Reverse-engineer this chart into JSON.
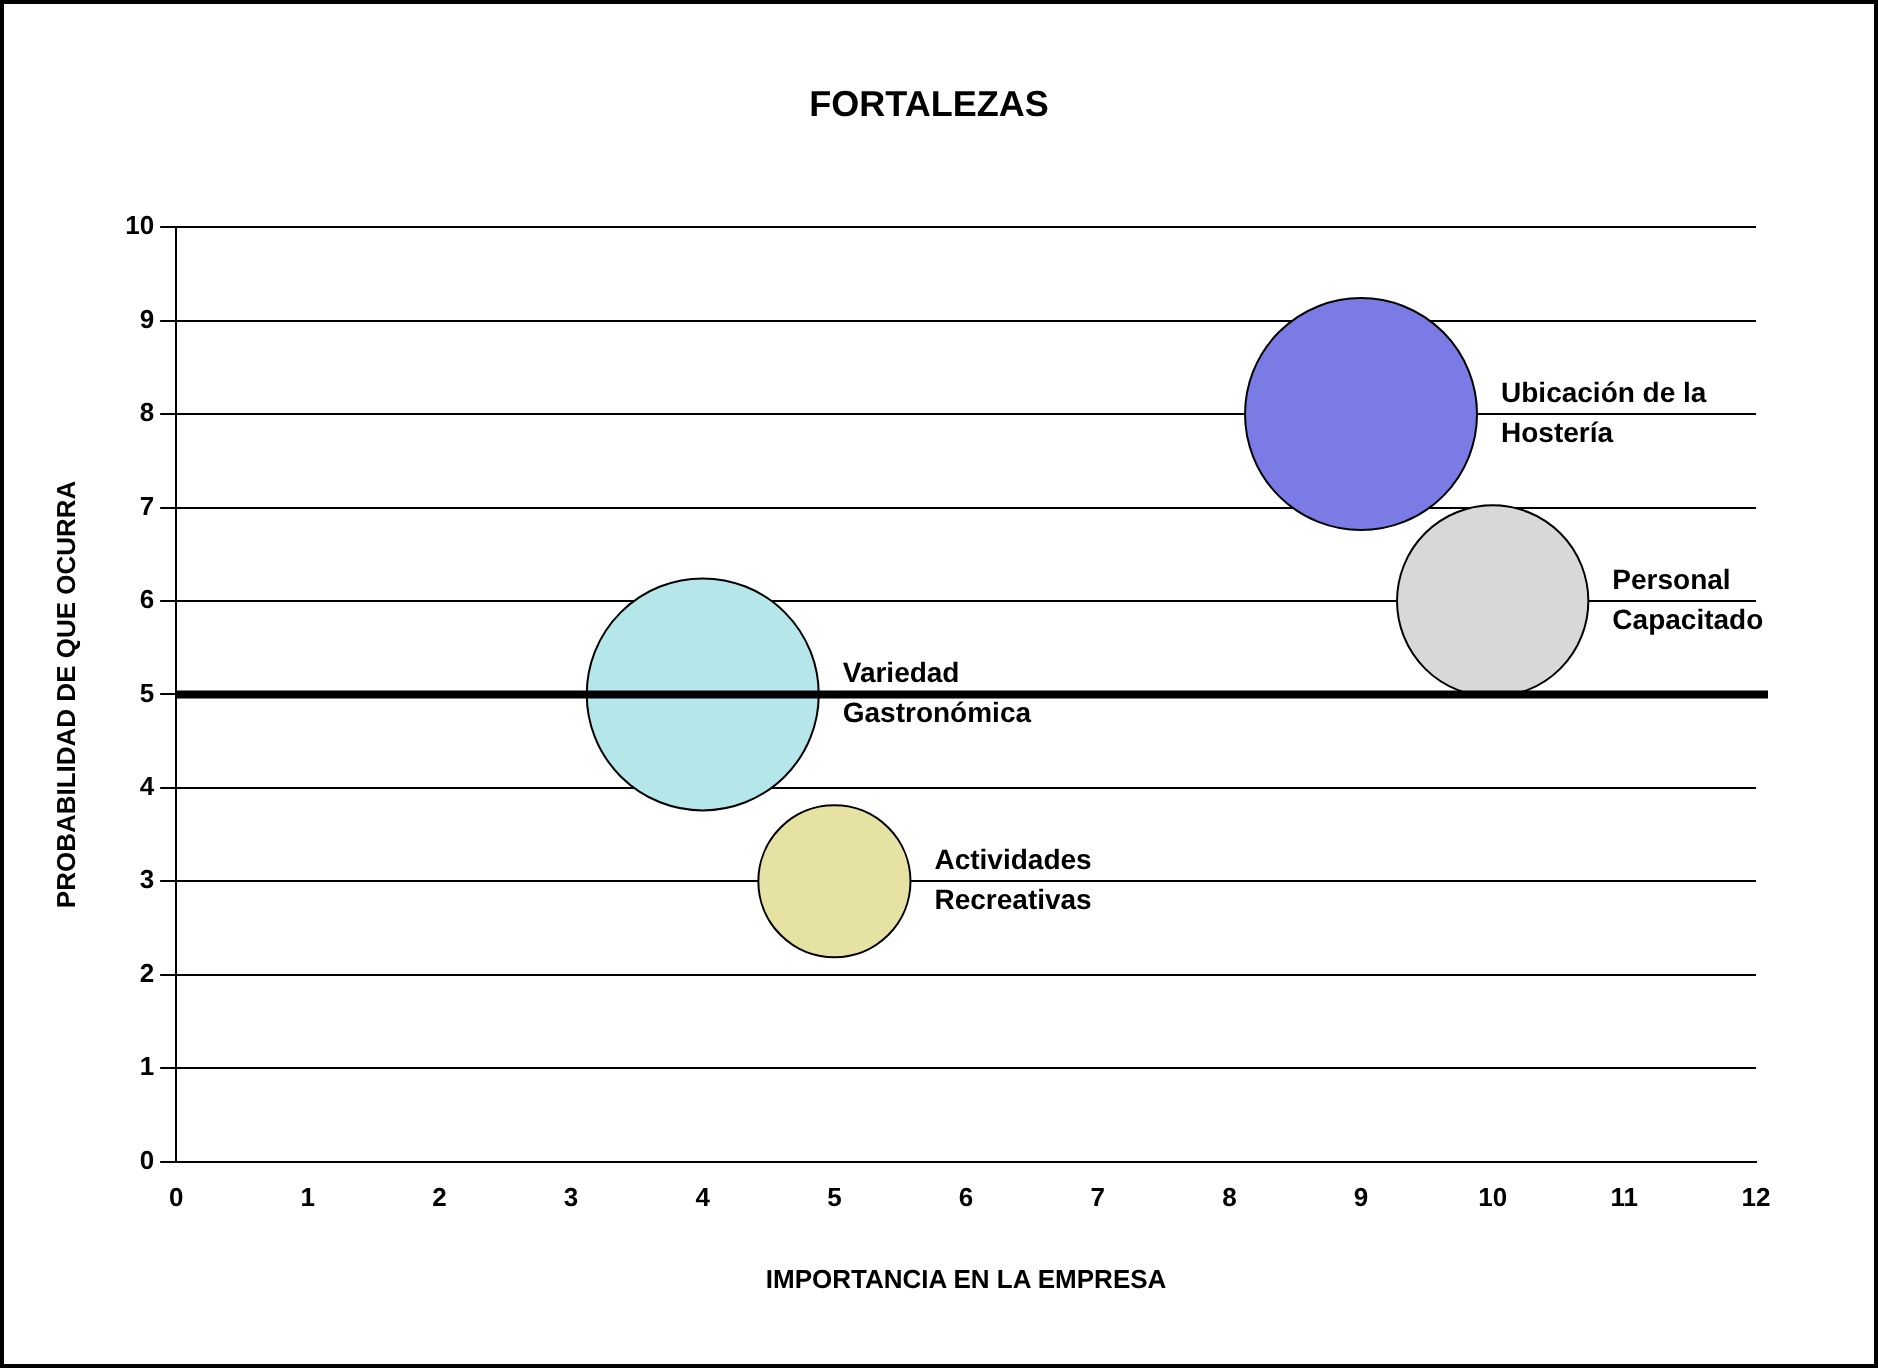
{
  "chart_data": {
    "type": "bubble",
    "title": "FORTALEZAS",
    "xlabel": "IMPORTANCIA EN LA EMPRESA",
    "ylabel": "PROBABILIDAD DE QUE OCURRA",
    "series": [
      {
        "name": "Ubicación de la Hostería",
        "color": "#7b7be6",
        "x": [
          9
        ],
        "values": [
          8
        ],
        "sizes": [
          1
        ]
      },
      {
        "name": "Personal Capacitado",
        "color": "#d8d8d8",
        "x": [
          10
        ],
        "values": [
          6
        ],
        "sizes": [
          0.68
        ]
      },
      {
        "name": "Variedad Gastronómica",
        "color": "#b4e6ea",
        "x": [
          4
        ],
        "values": [
          5
        ],
        "sizes": [
          1
        ]
      },
      {
        "name": "Actividades Recreativas",
        "color": "#e6e2a4",
        "x": [
          5
        ],
        "values": [
          3
        ],
        "sizes": [
          0.43
        ]
      }
    ],
    "xlim": [
      0,
      12
    ],
    "xticks": [
      0,
      1,
      2,
      3,
      4,
      5,
      6,
      7,
      8,
      9,
      10,
      11,
      12
    ],
    "ylim": [
      0,
      10
    ],
    "yticks": [
      0,
      1,
      2,
      3,
      4,
      5,
      6,
      7,
      8,
      9,
      10
    ],
    "ref_lines": [
      {
        "axis": "y",
        "value": 5,
        "color": "#000000"
      }
    ],
    "grid": "y",
    "legend": false
  }
}
